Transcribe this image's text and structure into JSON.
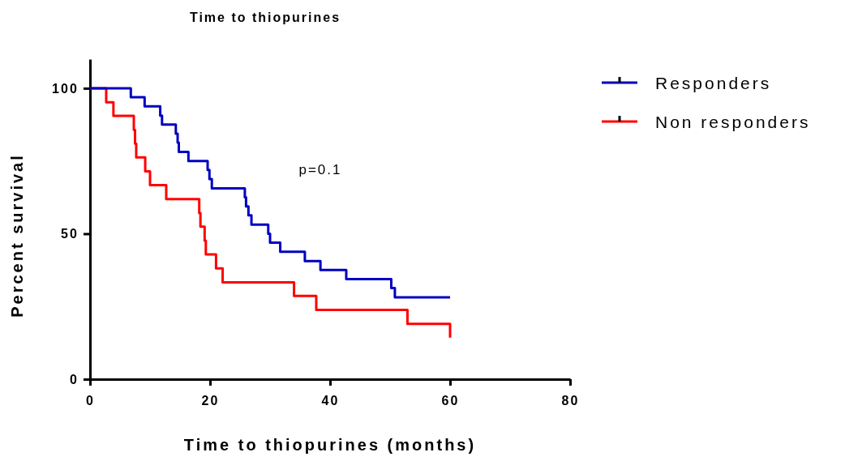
{
  "chart_data": {
    "type": "step",
    "title": "Time to thiopurines",
    "xlabel": "Time to thiopurines (months)",
    "ylabel": "Percent survival",
    "xlim": [
      0,
      80
    ],
    "xticks": [
      0,
      20,
      40,
      60,
      80
    ],
    "ylim": [
      0,
      110
    ],
    "yticks": [
      0,
      50,
      100
    ],
    "grid": false,
    "legend": "top right",
    "annotations": [
      "p=0.1"
    ],
    "series": [
      {
        "name": "Responders",
        "color": "#0000c0",
        "x": [
          0,
          6.8,
          9.1,
          11.7,
          12.0,
          14.3,
          14.6,
          14.8,
          16.4,
          19.6,
          19.9,
          20.3,
          25.8,
          26.0,
          26.4,
          26.9,
          29.7,
          30.0,
          31.7,
          35.8,
          38.4,
          42.7,
          50.2,
          50.8,
          60
        ],
        "values": [
          100,
          96.9,
          93.8,
          90.6,
          87.5,
          84.4,
          81.3,
          78.1,
          75,
          71.9,
          68.8,
          65.6,
          62.5,
          59.4,
          56.3,
          53.1,
          50,
          46.9,
          43.8,
          40.6,
          37.5,
          34.4,
          31.3,
          28.1,
          28.1
        ]
      },
      {
        "name": "Non responders",
        "color": "#ff0000",
        "x": [
          0,
          2.7,
          3.9,
          7.3,
          7.5,
          7.7,
          9.2,
          10.0,
          12.7,
          18.2,
          18.4,
          19.1,
          19.3,
          21.0,
          22.1,
          34.0,
          37.7,
          52.9,
          60
        ],
        "values": [
          100,
          95.2,
          90.5,
          85.7,
          81,
          76.2,
          71.4,
          66.7,
          61.9,
          57.1,
          52.4,
          47.6,
          42.9,
          38.1,
          33.3,
          28.6,
          23.8,
          19.0,
          14.3
        ]
      }
    ]
  }
}
